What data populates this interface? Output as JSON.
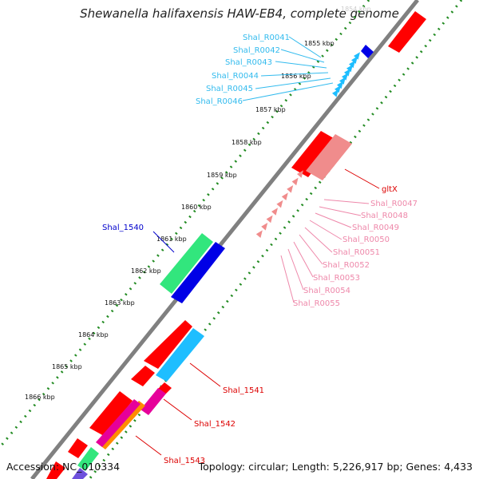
{
  "title": "Shewanella halifaxensis HAW-EB4, complete genome",
  "footer": {
    "accession": "Accession: NC_010334",
    "summary": "Topology: circular; Length: 5,226,917 bp; Genes: 4,433"
  },
  "colors": {
    "backbone": "#808080",
    "ticks": "#228B22",
    "red": "#FF0000",
    "pink": "#F08C8C",
    "blue": "#0000E6",
    "green": "#32E67D",
    "cyan": "#1EBEFF",
    "magenta": "#E6009A",
    "orange": "#FF8C00",
    "purple": "#6E50DC",
    "label_cyan": "#33BBEE",
    "label_pink": "#EE88AA",
    "label_red": "#DD0000",
    "label_blue": "#0000CC"
  },
  "ruler": {
    "faded_label": "1854 kbp",
    "ticks": [
      "1855 kbp",
      "1856 kbp",
      "1857 kbp",
      "1858 kbp",
      "1859 kbp",
      "1860 kbp",
      "1861 kbp",
      "1862 kbp",
      "1863 kbp",
      "1864 kbp",
      "1865 kbp",
      "1866 kbp"
    ]
  },
  "labels": {
    "upper_rrnas": [
      "Shal_R0041",
      "Shal_R0042",
      "Shal_R0043",
      "Shal_R0044",
      "Shal_R0045",
      "Shal_R0046"
    ],
    "lower_rrnas": [
      "Shal_R0047",
      "Shal_R0048",
      "Shal_R0049",
      "Shal_R0050",
      "Shal_R0051",
      "Shal_R0052",
      "Shal_R0053",
      "Shal_R0054",
      "Shal_R0055"
    ],
    "gltx": "gltX",
    "shal_1540": "Shal_1540",
    "shal_1541": "Shal_1541",
    "shal_1542": "Shal_1542",
    "shal_1543": "Shal_1543"
  }
}
